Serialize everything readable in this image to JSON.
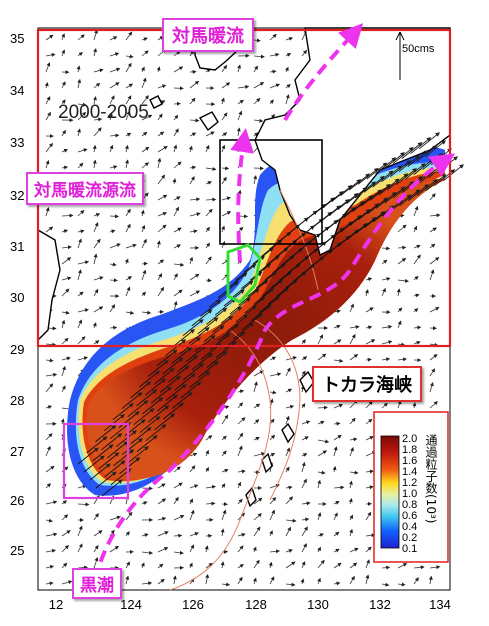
{
  "map": {
    "period_label": "2000-2005",
    "scale_label": "50cms",
    "lon_ticks": [
      "124",
      "126",
      "128",
      "130",
      "132",
      "134"
    ],
    "lon_first_partial": "12",
    "lat_ticks": [
      "35",
      "34",
      "33",
      "32",
      "31",
      "30",
      "29",
      "28",
      "27",
      "26",
      "25"
    ]
  },
  "labels": {
    "tsushima_current": "対馬暖流",
    "tsushima_source": "対馬暖流源流",
    "tokara_strait": "トカラ海峡",
    "kuroshio": "黒潮"
  },
  "colorbar": {
    "title": "通過粒子数(10³)",
    "ticks": [
      "2.0",
      "1.8",
      "1.6",
      "1.4",
      "1.2",
      "1.0",
      "0.8",
      "0.6",
      "0.4",
      "0.2",
      "0.1"
    ]
  },
  "colors": {
    "highlight_pink": "#e040e0",
    "box_red": "#e02020",
    "source_green": "#33dd33",
    "density_high": "#8b1a0a",
    "density_low": "#1040ff"
  }
}
